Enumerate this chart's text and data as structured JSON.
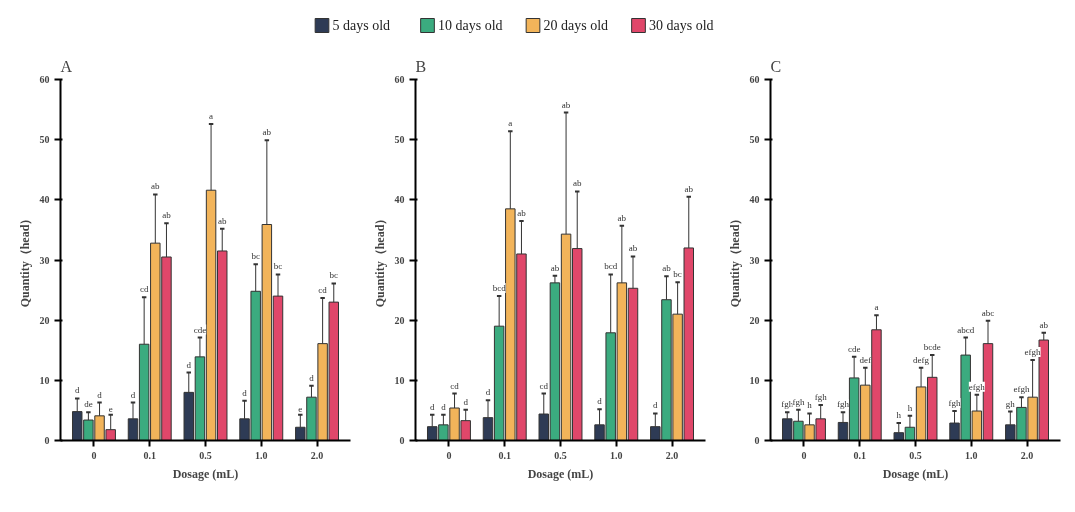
{
  "chart_data": [
    {
      "type": "bar",
      "title": "A",
      "xlabel": "Dosage (mL)",
      "ylabel": "Quantity（head）",
      "categories": [
        "0",
        "0.1",
        "0.5",
        "1.0",
        "2.0"
      ],
      "ylim": [
        0,
        60
      ],
      "yticks": [
        0,
        10,
        20,
        30,
        40,
        50,
        60
      ],
      "grid": false,
      "legend": "top",
      "series": [
        {
          "name": "5 days old",
          "color": "#2e3b55",
          "values": [
            4.8,
            3.6,
            8.0,
            3.6,
            2.2
          ],
          "errors": [
            [
              4.8,
              7.0
            ],
            [
              3.6,
              6.3
            ],
            [
              8.0,
              11.3
            ],
            [
              3.6,
              6.6
            ],
            [
              2.2,
              4.3
            ]
          ]
        },
        {
          "name": "10 days old",
          "color": "#3bab7f",
          "values": [
            3.4,
            16.0,
            13.9,
            24.8,
            7.2
          ],
          "errors": [
            [
              3.4,
              4.7
            ],
            [
              16.0,
              23.8
            ],
            [
              13.9,
              17.1
            ],
            [
              24.8,
              29.3
            ],
            [
              7.2,
              9.1
            ]
          ]
        },
        {
          "name": "20 days old",
          "color": "#f2b45a",
          "values": [
            4.1,
            32.8,
            41.6,
            35.9,
            16.1
          ],
          "errors": [
            [
              4.1,
              6.3
            ],
            [
              32.8,
              40.9
            ],
            [
              41.6,
              52.6
            ],
            [
              35.9,
              49.9
            ],
            [
              16.1,
              23.7
            ]
          ]
        },
        {
          "name": "30 days old",
          "color": "#e0476a",
          "values": [
            1.8,
            30.5,
            31.5,
            24.0,
            23.0
          ],
          "errors": [
            [
              1.8,
              4.3
            ],
            [
              30.5,
              36.1
            ],
            [
              31.5,
              35.2
            ],
            [
              24.0,
              27.6
            ],
            [
              23.0,
              26.1
            ]
          ]
        }
      ],
      "annotations": [
        "d",
        "de",
        "d",
        "e",
        "d",
        "cd",
        "ab",
        "ab",
        "d",
        "cde",
        "a",
        "ab",
        "d",
        "bc",
        "ab",
        "bc",
        "e",
        "d",
        "cd",
        "bc"
      ]
    },
    {
      "type": "bar",
      "title": "B",
      "xlabel": "Dosage (mL)",
      "ylabel": "Quantity（head）",
      "categories": [
        "0",
        "0.1",
        "0.5",
        "1.0",
        "2.0"
      ],
      "ylim": [
        0,
        60
      ],
      "yticks": [
        0,
        10,
        20,
        30,
        40,
        50,
        60
      ],
      "grid": false,
      "series": [
        {
          "color": "#2e3b55",
          "values": [
            2.3,
            3.8,
            4.4,
            2.6,
            2.3
          ],
          "errors": [
            [
              2.3,
              4.3
            ],
            [
              3.8,
              6.7
            ],
            [
              4.4,
              7.8
            ],
            [
              2.6,
              5.2
            ],
            [
              2.3,
              4.5
            ]
          ]
        },
        {
          "color": "#3bab7f",
          "values": [
            2.6,
            19.0,
            26.2,
            17.9,
            23.4
          ],
          "errors": [
            [
              2.6,
              4.3
            ],
            [
              19.0,
              24.0
            ],
            [
              26.2,
              27.4
            ],
            [
              17.9,
              27.6
            ],
            [
              23.4,
              27.3
            ]
          ]
        },
        {
          "color": "#f2b45a",
          "values": [
            5.4,
            38.5,
            34.3,
            26.2,
            21.0
          ],
          "errors": [
            [
              5.4,
              7.8
            ],
            [
              38.5,
              51.4
            ],
            [
              34.3,
              54.5
            ],
            [
              26.2,
              35.7
            ],
            [
              21.0,
              26.3
            ]
          ]
        },
        {
          "color": "#e0476a",
          "values": [
            3.3,
            31.0,
            31.9,
            25.3,
            32.0
          ],
          "errors": [
            [
              3.3,
              5.1
            ],
            [
              31.0,
              36.5
            ],
            [
              31.9,
              41.4
            ],
            [
              25.3,
              30.6
            ],
            [
              32.0,
              40.5
            ]
          ]
        }
      ],
      "annotations": [
        "d",
        "d",
        "cd",
        "d",
        "d",
        "bcd",
        "a",
        "ab",
        "cd",
        "ab",
        "ab",
        "ab",
        "d",
        "bcd",
        "ab",
        "ab",
        "d",
        "ab",
        "bc",
        "ab"
      ]
    },
    {
      "type": "bar",
      "title": "C",
      "xlabel": "Dosage (mL)",
      "ylabel": "Quantity（head）",
      "categories": [
        "0",
        "0.1",
        "0.5",
        "1.0",
        "2.0"
      ],
      "ylim": [
        0,
        60
      ],
      "yticks": [
        0,
        10,
        20,
        30,
        40,
        50,
        60
      ],
      "grid": false,
      "series": [
        {
          "color": "#2e3b55",
          "values": [
            3.6,
            3.0,
            1.3,
            2.9,
            2.6
          ],
          "errors": [
            [
              3.6,
              4.7
            ],
            [
              3.0,
              4.7
            ],
            [
              1.3,
              2.9
            ],
            [
              2.9,
              4.9
            ],
            [
              2.6,
              4.8
            ]
          ]
        },
        {
          "color": "#3bab7f",
          "values": [
            3.2,
            10.4,
            2.2,
            14.2,
            5.5
          ],
          "errors": [
            [
              3.2,
              5.1
            ],
            [
              10.4,
              13.9
            ],
            [
              2.2,
              4.1
            ],
            [
              14.2,
              17.1
            ],
            [
              5.5,
              7.2
            ]
          ]
        },
        {
          "color": "#f2b45a",
          "values": [
            2.6,
            9.2,
            8.9,
            4.9,
            7.2
          ],
          "errors": [
            [
              2.6,
              4.5
            ],
            [
              9.2,
              12.1
            ],
            [
              8.9,
              12.1
            ],
            [
              4.9,
              7.6
            ],
            [
              7.2,
              13.4
            ]
          ]
        },
        {
          "color": "#e0476a",
          "values": [
            3.6,
            18.4,
            10.5,
            16.1,
            16.7
          ],
          "errors": [
            [
              3.6,
              5.9
            ],
            [
              18.4,
              20.8
            ],
            [
              10.5,
              14.2
            ],
            [
              16.1,
              19.9
            ],
            [
              16.7,
              17.9
            ]
          ]
        }
      ],
      "annotations": [
        "fgh",
        "fgh",
        "h",
        "fgh",
        "fgh",
        "cde",
        "def",
        "a",
        "h",
        "h",
        "defg",
        "bcde",
        "fgh",
        "abcd",
        "efgh",
        "abc",
        "gh",
        "efgh",
        "efgh",
        "ab"
      ]
    }
  ]
}
